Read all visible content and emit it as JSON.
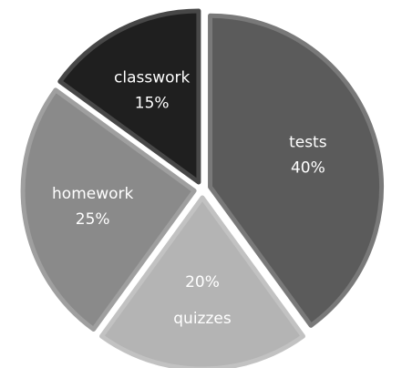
{
  "chart_data": {
    "type": "pie",
    "categories": [
      "tests",
      "quizzes",
      "homework",
      "classwork"
    ],
    "values": [
      40,
      20,
      25,
      15
    ],
    "value_labels": [
      "40%",
      "20%",
      "25%",
      "15%"
    ],
    "colors": [
      "#5b5b5b",
      "#b4b4b4",
      "#8a8a8a",
      "#1f1f1f"
    ]
  }
}
